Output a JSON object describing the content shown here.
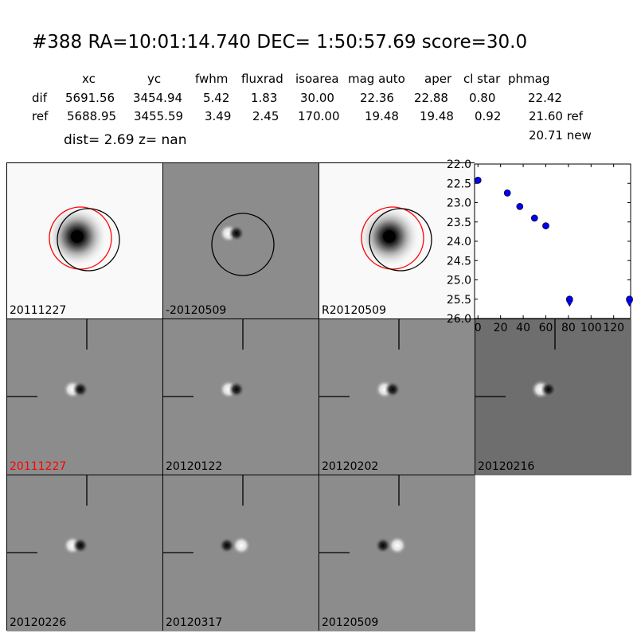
{
  "header": {
    "title": "#388   RA=10:01:14.740 DEC= 1:50:57.69       score=30.0",
    "columns": [
      "xc",
      "yc",
      "fwhm",
      "fluxrad",
      "isoarea",
      "mag auto",
      "aper",
      "cl star",
      "phmag"
    ],
    "dif_label": "dif",
    "ref_label": "ref",
    "dif_values": [
      "5691.56",
      "3454.94",
      "5.42",
      "1.83",
      "30.00",
      "22.36",
      "22.88",
      "0.80",
      "22.42"
    ],
    "ref_values": [
      "5688.95",
      "3455.59",
      "3.49",
      "2.45",
      "170.00",
      "19.48",
      "19.48",
      "0.92",
      "21.60 ref"
    ],
    "new_value": "20.71 new",
    "dist_text": "dist=  2.69       z=   nan"
  },
  "panels": [
    {
      "label": "20111227",
      "kind": "ref",
      "label_color": "#000000"
    },
    {
      "label": "-20120509",
      "kind": "diff",
      "label_color": "#000000"
    },
    {
      "label": "R20120509",
      "kind": "ref",
      "label_color": "#000000"
    },
    {
      "label": "20111227",
      "kind": "diff",
      "label_color": "#ff0000"
    },
    {
      "label": "20120122",
      "kind": "diff",
      "label_color": "#000000"
    },
    {
      "label": "20120202",
      "kind": "diff",
      "label_color": "#000000"
    },
    {
      "label": "20120216",
      "kind": "diff",
      "label_color": "#000000"
    },
    {
      "label": "20120226",
      "kind": "diff",
      "label_color": "#000000"
    },
    {
      "label": "20120317",
      "kind": "diff",
      "label_color": "#000000"
    },
    {
      "label": "20120509",
      "kind": "diff",
      "label_color": "#000000"
    }
  ],
  "chart_data": {
    "type": "scatter",
    "title": "",
    "xlabel": "",
    "ylabel": "",
    "xlim": [
      -3,
      135
    ],
    "ylim": [
      26.0,
      22.0
    ],
    "y_inverted": true,
    "xticks": [
      "0",
      "20",
      "40",
      "60",
      "80",
      "100",
      "120"
    ],
    "yticks": [
      "22.0",
      "22.5",
      "23.0",
      "23.5",
      "24.0",
      "24.5",
      "25.0",
      "25.5",
      "26.0"
    ],
    "marker_color": "#0000ff",
    "points": [
      {
        "x": 0,
        "y": 22.42,
        "err": 0.03
      },
      {
        "x": 26,
        "y": 22.75,
        "err": 0.04
      },
      {
        "x": 37,
        "y": 23.1,
        "err": 0.05
      },
      {
        "x": 50,
        "y": 23.4,
        "err": 0.07
      },
      {
        "x": 60,
        "y": 23.6,
        "err": 0.07
      }
    ],
    "upper_limits": [
      {
        "x": 81,
        "y": 25.5
      },
      {
        "x": 134,
        "y": 25.5
      }
    ]
  }
}
